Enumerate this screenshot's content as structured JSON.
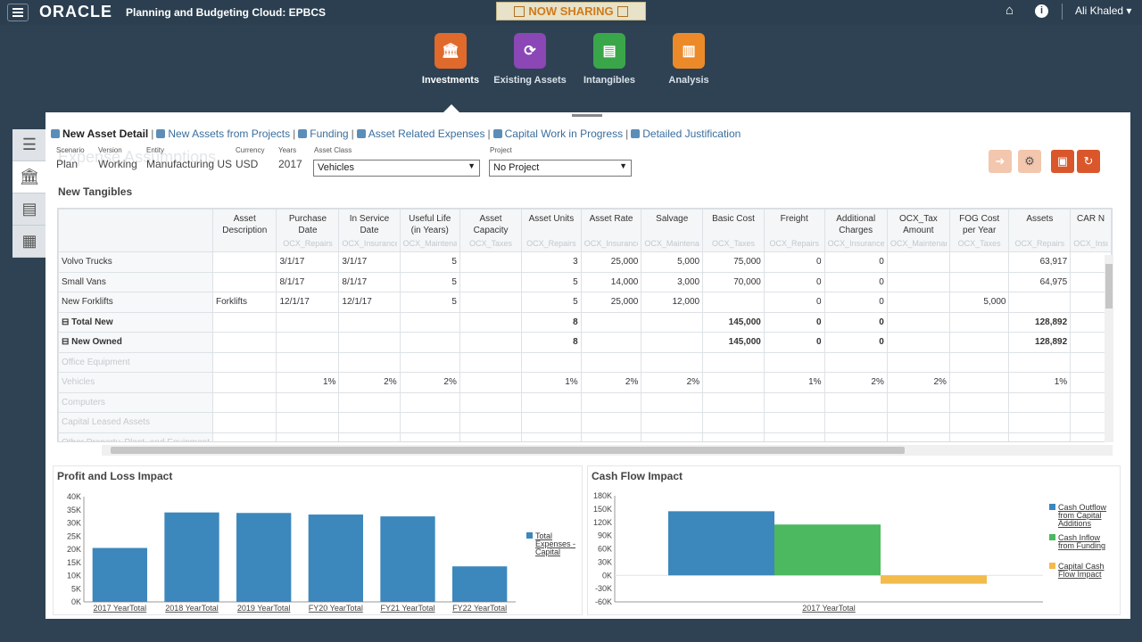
{
  "topbar": {
    "logo": "ORACLE",
    "app_title": "Planning and Budgeting Cloud: EPBCS",
    "sharing": "NOW SHARING",
    "user": "Ali Khaled ▾"
  },
  "nav": [
    {
      "label": "Investments",
      "color": "#e06a2b",
      "active": true
    },
    {
      "label": "Existing Assets",
      "color": "#8a47b5",
      "active": false
    },
    {
      "label": "Intangibles",
      "color": "#3aa64a",
      "active": false
    },
    {
      "label": "Analysis",
      "color": "#ec8a2a",
      "active": false
    }
  ],
  "tabs": [
    {
      "label": "New Asset Detail",
      "active": true
    },
    {
      "label": "New Assets from Projects",
      "active": false
    },
    {
      "label": "Funding",
      "active": false
    },
    {
      "label": "Asset Related Expenses",
      "active": false
    },
    {
      "label": "Capital Work in Progress",
      "active": false
    },
    {
      "label": "Detailed Justification",
      "active": false
    }
  ],
  "pov": {
    "scenario": {
      "label": "Scenario",
      "value": "Plan"
    },
    "version": {
      "label": "Version",
      "value": "Working"
    },
    "entity": {
      "label": "Entity",
      "value": "Manufacturing US"
    },
    "currency": {
      "label": "Currency",
      "value": "USD"
    },
    "years": {
      "label": "Years",
      "value": "2017"
    },
    "asset_class": {
      "label": "Asset Class",
      "value": "Vehicles"
    },
    "project": {
      "label": "Project",
      "value": "No Project"
    }
  },
  "ghost_title": "Expense Assumptions",
  "grid": {
    "title": "New Tangibles",
    "columns": [
      {
        "label": "",
        "sub": ""
      },
      {
        "label": "Asset Description",
        "sub": ""
      },
      {
        "label": "Purchase Date",
        "sub": "OCX_Repairs"
      },
      {
        "label": "In Service Date",
        "sub": "OCX_Insurance"
      },
      {
        "label": "Useful Life (in Years)",
        "sub": "OCX_Maintenanc"
      },
      {
        "label": "Asset Capacity",
        "sub": "OCX_Taxes"
      },
      {
        "label": "Asset Units",
        "sub": "OCX_Repairs"
      },
      {
        "label": "Asset Rate",
        "sub": "OCX_Insurance"
      },
      {
        "label": "Salvage",
        "sub": "OCX_Maintenanc"
      },
      {
        "label": "Basic Cost",
        "sub": "OCX_Taxes"
      },
      {
        "label": "Freight",
        "sub": "OCX_Repairs"
      },
      {
        "label": "Additional Charges",
        "sub": "OCX_Insurance"
      },
      {
        "label": "OCX_Tax Amount",
        "sub": "OCX_Maintenanc"
      },
      {
        "label": "FOG Cost per Year",
        "sub": "OCX_Taxes"
      },
      {
        "label": "Assets",
        "sub": "OCX_Repairs"
      },
      {
        "label": "CAR N",
        "sub": "OCX_Insu"
      }
    ],
    "rows": [
      {
        "cells": [
          "Volvo Trucks",
          "",
          "3/1/17",
          "3/1/17",
          "5",
          "",
          "3",
          "25,000",
          "5,000",
          "75,000",
          "0",
          "0",
          "",
          "",
          "63,917",
          ""
        ],
        "bold": false,
        "faint": false
      },
      {
        "cells": [
          "Small Vans",
          "",
          "8/1/17",
          "8/1/17",
          "5",
          "",
          "5",
          "14,000",
          "3,000",
          "70,000",
          "0",
          "0",
          "",
          "",
          "64,975",
          ""
        ],
        "bold": false,
        "faint": false
      },
      {
        "cells": [
          "New Forklifts",
          "Forklifts",
          "12/1/17",
          "12/1/17",
          "5",
          "",
          "5",
          "25,000",
          "12,000",
          "",
          "0",
          "0",
          "",
          "5,000",
          "",
          ""
        ],
        "bold": false,
        "faint": false
      },
      {
        "cells": [
          "⊟ Total New",
          "",
          "",
          "",
          "",
          "",
          "8",
          "",
          "",
          "145,000",
          "0",
          "0",
          "",
          "",
          "128,892",
          ""
        ],
        "bold": true,
        "faint": false
      },
      {
        "cells": [
          "⊟ New Owned",
          "",
          "",
          "",
          "",
          "",
          "8",
          "",
          "",
          "145,000",
          "0",
          "0",
          "",
          "",
          "128,892",
          ""
        ],
        "bold": true,
        "faint": false
      },
      {
        "cells": [
          "Office Equipment",
          "",
          "",
          "",
          "",
          "",
          "",
          "",
          "",
          "",
          "",
          "",
          "",
          "",
          "",
          ""
        ],
        "bold": false,
        "faint": true
      },
      {
        "cells": [
          "Vehicles",
          "",
          "1%",
          "2%",
          "2%",
          "",
          "1%",
          "2%",
          "2%",
          "",
          "1%",
          "2%",
          "2%",
          "",
          "1%",
          ""
        ],
        "bold": false,
        "faint": true
      },
      {
        "cells": [
          "Computers",
          "",
          "",
          "",
          "",
          "",
          "",
          "",
          "",
          "",
          "",
          "",
          "",
          "",
          "",
          ""
        ],
        "bold": false,
        "faint": true
      },
      {
        "cells": [
          "Capital Leased Assets",
          "",
          "",
          "",
          "",
          "",
          "",
          "",
          "",
          "",
          "",
          "",
          "",
          "",
          "",
          ""
        ],
        "bold": false,
        "faint": true
      },
      {
        "cells": [
          "Other Property, Plant, and Equipment",
          "",
          "",
          "",
          "",
          "",
          "",
          "",
          "",
          "",
          "",
          "",
          "",
          "",
          "",
          ""
        ],
        "bold": false,
        "faint": true
      }
    ]
  },
  "chart_data": [
    {
      "type": "bar",
      "title": "Profit and Loss Impact",
      "categories": [
        "2017 YearTotal",
        "2018 YearTotal",
        "2019 YearTotal",
        "FY20 YearTotal",
        "FY21 YearTotal",
        "FY22 YearTotal"
      ],
      "series": [
        {
          "name": "Total Expenses - Capital",
          "values": [
            20500,
            34000,
            33800,
            33200,
            32500,
            13500
          ],
          "color": "#3c87bc"
        }
      ],
      "ylim": [
        0,
        40000
      ],
      "yticks": [
        "0K",
        "5K",
        "10K",
        "15K",
        "20K",
        "25K",
        "30K",
        "35K",
        "40K"
      ],
      "legend": "right"
    },
    {
      "type": "bar",
      "title": "Cash Flow Impact",
      "categories": [
        "2017 YearTotal"
      ],
      "series": [
        {
          "name": "Cash Outflow from Capital Additions",
          "values": [
            145000
          ],
          "color": "#3c87bc"
        },
        {
          "name": "Cash Inflow from Funding",
          "values": [
            115000
          ],
          "color": "#4cb860"
        },
        {
          "name": "Capital Cash Flow Impact",
          "values": [
            -19000
          ],
          "color": "#f2bb4b"
        }
      ],
      "ylim": [
        -60000,
        180000
      ],
      "yticks": [
        "-60K",
        "-30K",
        "0K",
        "30K",
        "60K",
        "90K",
        "120K",
        "150K",
        "180K"
      ],
      "legend": "right"
    }
  ]
}
